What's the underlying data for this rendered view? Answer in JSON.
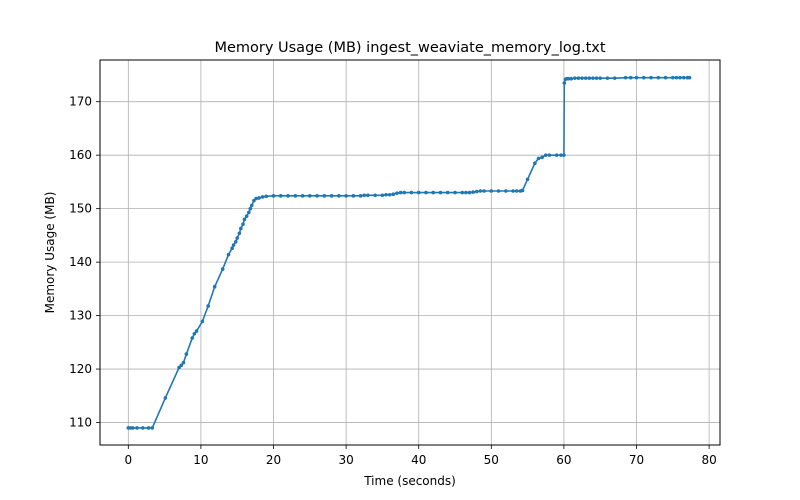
{
  "chart_data": {
    "type": "line",
    "title": "Memory Usage (MB) ingest_weaviate_memory_log.txt",
    "xlabel": "Time (seconds)",
    "ylabel": "Memory Usage (MB)",
    "xlim": [
      -3.9,
      81.5
    ],
    "ylim": [
      105.8,
      177.8
    ],
    "xticks": [
      0,
      10,
      20,
      30,
      40,
      50,
      60,
      70,
      80
    ],
    "yticks": [
      110,
      120,
      130,
      140,
      150,
      160,
      170
    ],
    "grid": true,
    "legend": "none",
    "series": [
      {
        "color": "#1f77b4",
        "x": [
          0,
          0.3,
          0.6,
          1.2,
          2.0,
          2.8,
          3.3,
          5.1,
          7.0,
          7.3,
          7.6,
          8.0,
          8.8,
          9.1,
          9.4,
          10.2,
          11.0,
          11.9,
          13.0,
          13.8,
          14.3,
          14.5,
          14.8,
          15.0,
          15.3,
          15.5,
          15.8,
          16.0,
          16.3,
          16.6,
          16.8,
          17.0,
          17.3,
          17.6,
          18.0,
          18.5,
          19.0,
          20.0,
          21.0,
          22.0,
          23.0,
          24.0,
          25.0,
          26.0,
          27.0,
          28.0,
          29.0,
          30.0,
          31.0,
          32.0,
          32.5,
          33.0,
          34.0,
          35.0,
          35.5,
          36.0,
          36.5,
          37.0,
          37.5,
          38.0,
          39.0,
          40.0,
          41.0,
          42.0,
          43.0,
          44.0,
          45.0,
          46.0,
          46.5,
          47.0,
          47.5,
          48.0,
          48.5,
          49.0,
          50.0,
          51.0,
          52.0,
          53.0,
          53.5,
          54.0,
          54.3,
          55.0,
          56.0,
          56.5,
          57.0,
          57.5,
          58.0,
          59.0,
          59.6,
          60.0,
          60.05,
          60.2,
          60.4,
          60.6,
          61.0,
          61.5,
          62.0,
          62.5,
          63.0,
          63.5,
          64.0,
          64.5,
          65.0,
          66.0,
          67.0,
          68.5,
          69.2,
          70.0,
          71.0,
          72.0,
          73.0,
          74.0,
          75.0,
          75.5,
          76.0,
          76.5,
          77.0,
          77.3
        ],
        "y": [
          109.0,
          109.0,
          109.0,
          109.0,
          109.0,
          109.0,
          109.0,
          114.6,
          120.3,
          120.7,
          121.2,
          122.8,
          125.8,
          126.6,
          127.1,
          128.9,
          131.8,
          135.4,
          138.7,
          141.4,
          142.6,
          143.2,
          143.8,
          144.5,
          145.4,
          146.3,
          147.1,
          148.0,
          148.6,
          149.3,
          150.0,
          150.6,
          151.5,
          151.9,
          152.0,
          152.2,
          152.3,
          152.4,
          152.4,
          152.4,
          152.4,
          152.4,
          152.4,
          152.4,
          152.4,
          152.4,
          152.4,
          152.4,
          152.4,
          152.4,
          152.5,
          152.5,
          152.5,
          152.5,
          152.6,
          152.6,
          152.7,
          152.9,
          153.0,
          153.0,
          153.0,
          153.0,
          153.0,
          153.0,
          153.0,
          153.0,
          153.0,
          153.0,
          153.0,
          153.0,
          153.1,
          153.2,
          153.3,
          153.3,
          153.3,
          153.3,
          153.3,
          153.3,
          153.3,
          153.3,
          153.4,
          155.5,
          158.5,
          159.4,
          159.6,
          160.0,
          160.0,
          160.0,
          160.0,
          160.0,
          173.5,
          174.2,
          174.3,
          174.3,
          174.3,
          174.4,
          174.4,
          174.4,
          174.4,
          174.4,
          174.4,
          174.4,
          174.4,
          174.4,
          174.4,
          174.5,
          174.5,
          174.5,
          174.5,
          174.5,
          174.5,
          174.5,
          174.5,
          174.5,
          174.5,
          174.5,
          174.5,
          174.5
        ]
      }
    ]
  }
}
